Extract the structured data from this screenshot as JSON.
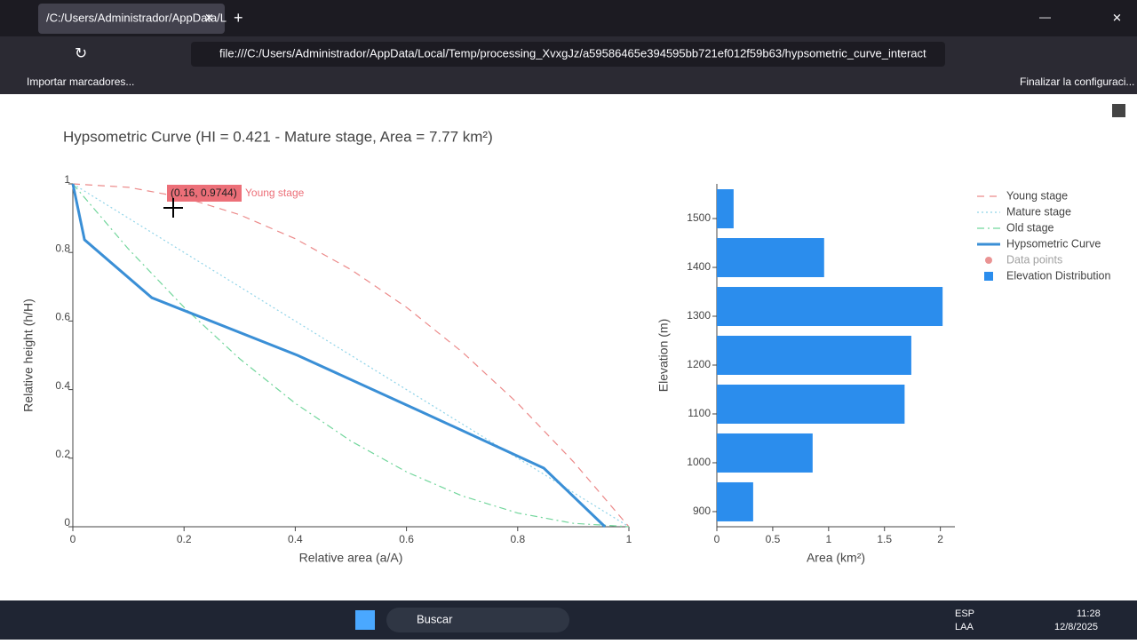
{
  "browser": {
    "tab_title": "/C:/Users/Administrador/AppData/L",
    "url": "file:///C:/Users/Administrador/AppData/Local/Temp/processing_XvxgJz/a59586465e394595bb721ef012f59b63/hypsometric_curve_interact",
    "bookmark": "Importar marcadores...",
    "setup": "Finalizar la configuraci..."
  },
  "tooltip": {
    "text": "(0.16, 0.9744)",
    "name": "Young stage"
  },
  "taskbar": {
    "search": "Buscar",
    "lang": "ESP",
    "layout": "LAA",
    "time": "11:28",
    "date": "12/8/2025"
  },
  "chart_data": [
    {
      "type": "line",
      "title": "Hypsometric Curve (HI = 0.421 - Mature stage, Area = 7.77 km²)",
      "x_label": "Relative area (a/A)",
      "y_label": "Relative height (h/H)",
      "xlim": [
        0,
        1
      ],
      "ylim": [
        0,
        1
      ],
      "xticks": [
        0,
        0.2,
        0.4,
        0.6,
        0.8,
        1
      ],
      "yticks": [
        0,
        0.2,
        0.4,
        0.6,
        0.8,
        1
      ],
      "series": [
        {
          "name": "Young stage",
          "color": "#ec8a8a",
          "dash": "dash",
          "x": [
            0,
            0.1,
            0.2,
            0.3,
            0.4,
            0.5,
            0.6,
            0.7,
            0.8,
            0.9,
            1
          ],
          "values": [
            1,
            0.99,
            0.96,
            0.91,
            0.84,
            0.75,
            0.64,
            0.51,
            0.36,
            0.19,
            0
          ]
        },
        {
          "name": "Mature stage",
          "color": "#8fd3e8",
          "dash": "dot",
          "x": [
            0,
            0.1,
            0.2,
            0.3,
            0.4,
            0.5,
            0.6,
            0.7,
            0.8,
            0.9,
            1
          ],
          "values": [
            1,
            0.9,
            0.8,
            0.7,
            0.6,
            0.5,
            0.4,
            0.3,
            0.2,
            0.1,
            0
          ]
        },
        {
          "name": "Old stage",
          "color": "#72d69c",
          "dash": "dashdot",
          "x": [
            0,
            0.1,
            0.2,
            0.3,
            0.4,
            0.5,
            0.6,
            0.7,
            0.8,
            0.9,
            1
          ],
          "values": [
            1,
            0.81,
            0.64,
            0.49,
            0.36,
            0.25,
            0.16,
            0.09,
            0.04,
            0.01,
            0
          ]
        },
        {
          "name": "Hypsometric Curve",
          "color": "#3a8fd6",
          "dash": "solid",
          "x": [
            0,
            0.021,
            0.142,
            0.404,
            0.63,
            0.847,
            0.957
          ],
          "values": [
            1,
            0.837,
            0.668,
            0.5,
            0.333,
            0.171,
            0
          ]
        },
        {
          "name": "Data points",
          "color": "#d62728",
          "visible": "legendonly"
        }
      ]
    },
    {
      "type": "barh",
      "x_label": "Area (km²)",
      "y_label": "Elevation (m)",
      "xlim": [
        0,
        2.13
      ],
      "ylim": [
        869,
        1571
      ],
      "xticks": [
        0,
        0.5,
        1,
        1.5,
        2
      ],
      "yticks": [
        900,
        1000,
        1100,
        1200,
        1300,
        1400,
        1500
      ],
      "y": [
        920,
        1020,
        1120,
        1220,
        1320,
        1420,
        1520
      ],
      "series": [
        {
          "name": "Elevation Distribution",
          "color": "#2b8ded",
          "values": [
            0.325,
            0.857,
            1.68,
            1.74,
            2.02,
            0.96,
            0.15
          ]
        }
      ]
    }
  ]
}
